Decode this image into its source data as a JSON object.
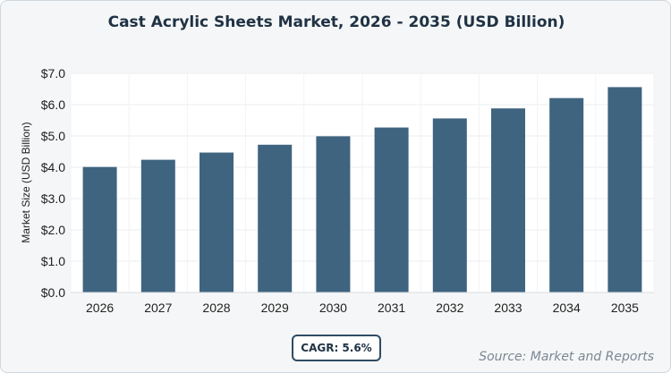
{
  "chart_data": {
    "type": "bar",
    "title": "Cast Acrylic Sheets Market, 2026 - 2035 (USD Billion)",
    "xlabel": "",
    "ylabel": "Market Size (USD Billion)",
    "categories": [
      "2026",
      "2027",
      "2028",
      "2029",
      "2030",
      "2031",
      "2032",
      "2033",
      "2034",
      "2035"
    ],
    "values": [
      4.01,
      4.24,
      4.47,
      4.72,
      4.99,
      5.27,
      5.56,
      5.88,
      6.21,
      6.56
    ],
    "ylim": [
      0,
      7
    ],
    "yticks": [
      0,
      1,
      2,
      3,
      4,
      5,
      6,
      7
    ],
    "ytick_labels": [
      "$0.0",
      "$1.0",
      "$2.0",
      "$3.0",
      "$4.0",
      "$5.0",
      "$6.0",
      "$7.0"
    ],
    "grid": true,
    "bar_color": "#3f6480"
  },
  "badge": {
    "cagr": "CAGR: 5.6%"
  },
  "source": "Source: Market and Reports"
}
